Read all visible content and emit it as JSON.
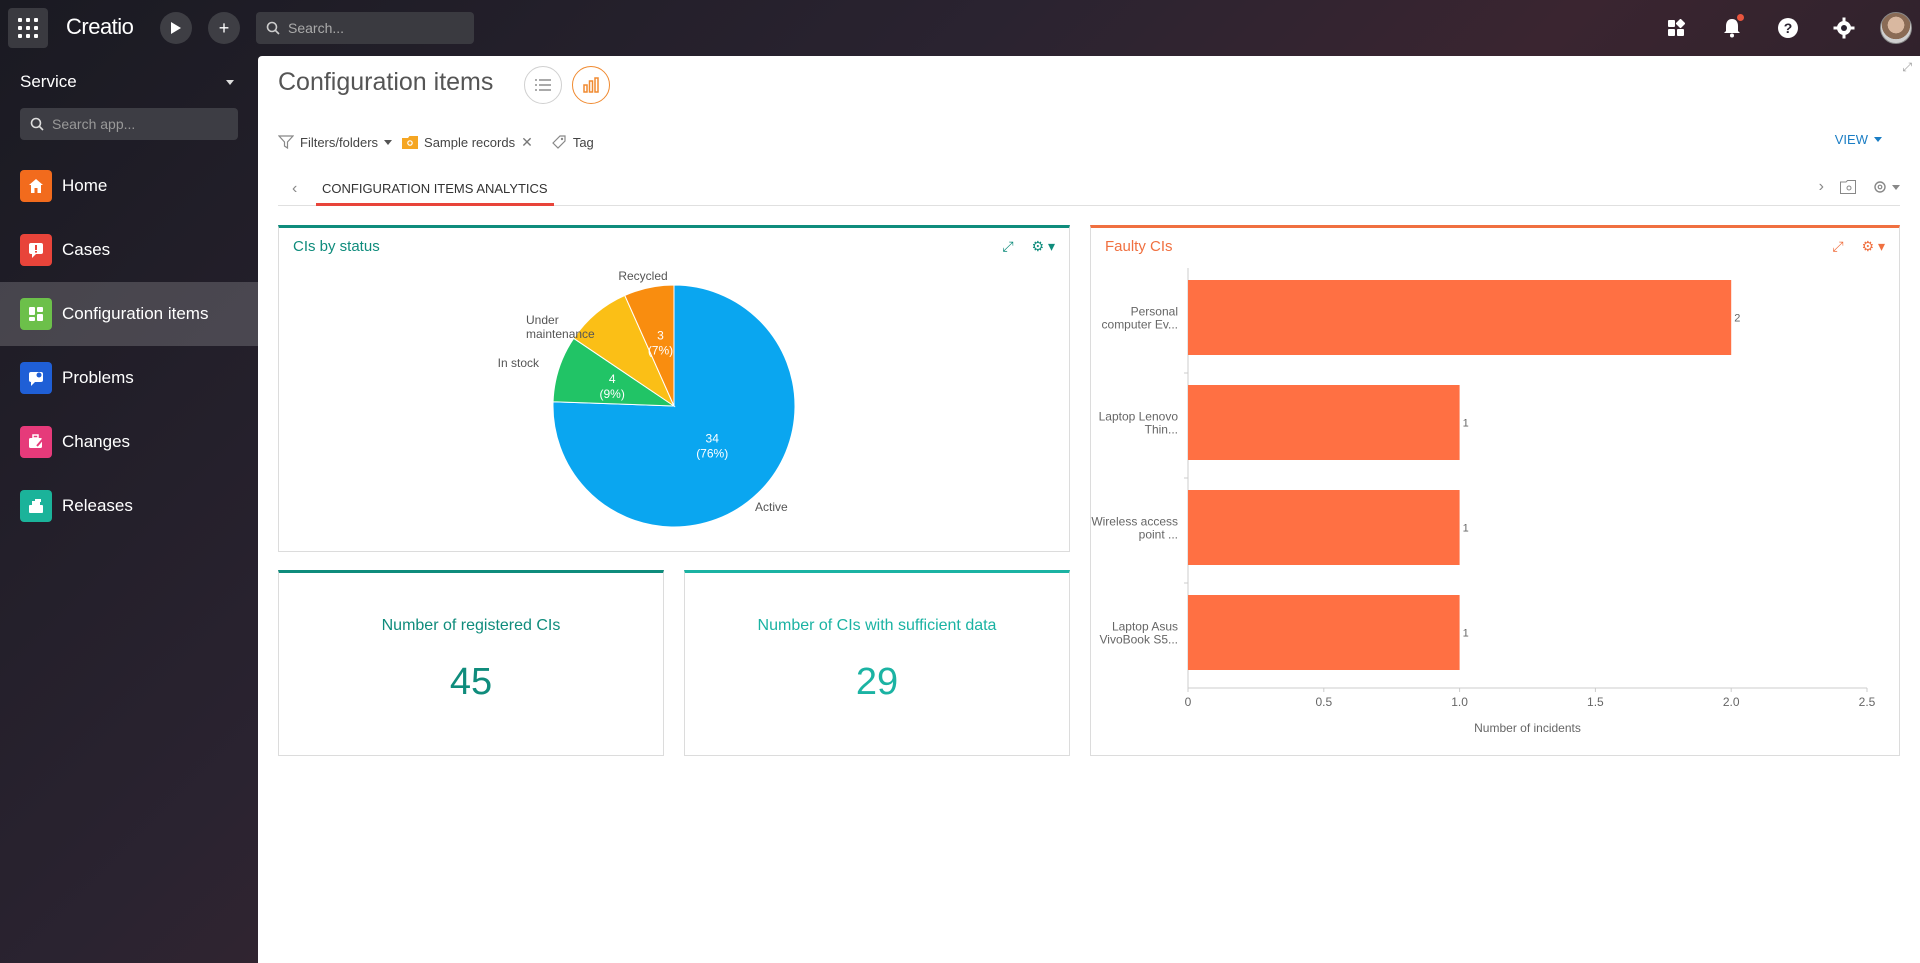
{
  "app": {
    "logo": "Creatio",
    "search_placeholder": "Search..."
  },
  "sidebar": {
    "workspace": "Service",
    "search_placeholder": "Search app...",
    "items": [
      {
        "label": "Home",
        "color": "#f26b1d"
      },
      {
        "label": "Cases",
        "color": "#e8443a"
      },
      {
        "label": "Configuration items",
        "color": "#6cc04a"
      },
      {
        "label": "Problems",
        "color": "#1f5fd6"
      },
      {
        "label": "Changes",
        "color": "#e63a7a"
      },
      {
        "label": "Releases",
        "color": "#1bb39a"
      }
    ]
  },
  "page": {
    "title": "Configuration items"
  },
  "filters": {
    "filters_folders": "Filters/folders",
    "sample_records": "Sample records",
    "tag": "Tag",
    "view": "VIEW"
  },
  "tabs": {
    "active": "CONFIGURATION ITEMS ANALYTICS"
  },
  "widgets": {
    "status": {
      "title": "CIs by status"
    },
    "registered": {
      "title": "Number of registered CIs",
      "value": "45"
    },
    "sufficient": {
      "title": "Number of CIs with sufficient data",
      "value": "29"
    },
    "faulty": {
      "title": "Faulty CIs"
    }
  },
  "chart_data": [
    {
      "type": "pie",
      "title": "CIs by status",
      "slices": [
        {
          "label": "Active",
          "value": 34,
          "pct": "76%",
          "color": "#0aa6f0"
        },
        {
          "label": "In stock",
          "value": 4,
          "pct": "9%",
          "color": "#21c466"
        },
        {
          "label": "Under maintenance",
          "value": 4,
          "pct": "",
          "color": "#fbbf16"
        },
        {
          "label": "Recycled",
          "value": 3,
          "pct": "7%",
          "color": "#f98d0f"
        }
      ]
    },
    {
      "type": "bar",
      "orientation": "horizontal",
      "title": "Faulty CIs",
      "categories": [
        "Personal computer Ev...",
        "Laptop Lenovo Thin...",
        "Wireless access point ...",
        "Laptop Asus VivoBook S5..."
      ],
      "values": [
        2,
        1,
        1,
        1
      ],
      "xlabel": "Number of incidents",
      "xlim": [
        0,
        2.5
      ],
      "ticks": [
        "0",
        "0.5",
        "1.0",
        "1.5",
        "2.0",
        "2.5"
      ],
      "color": "#ff7043"
    }
  ]
}
